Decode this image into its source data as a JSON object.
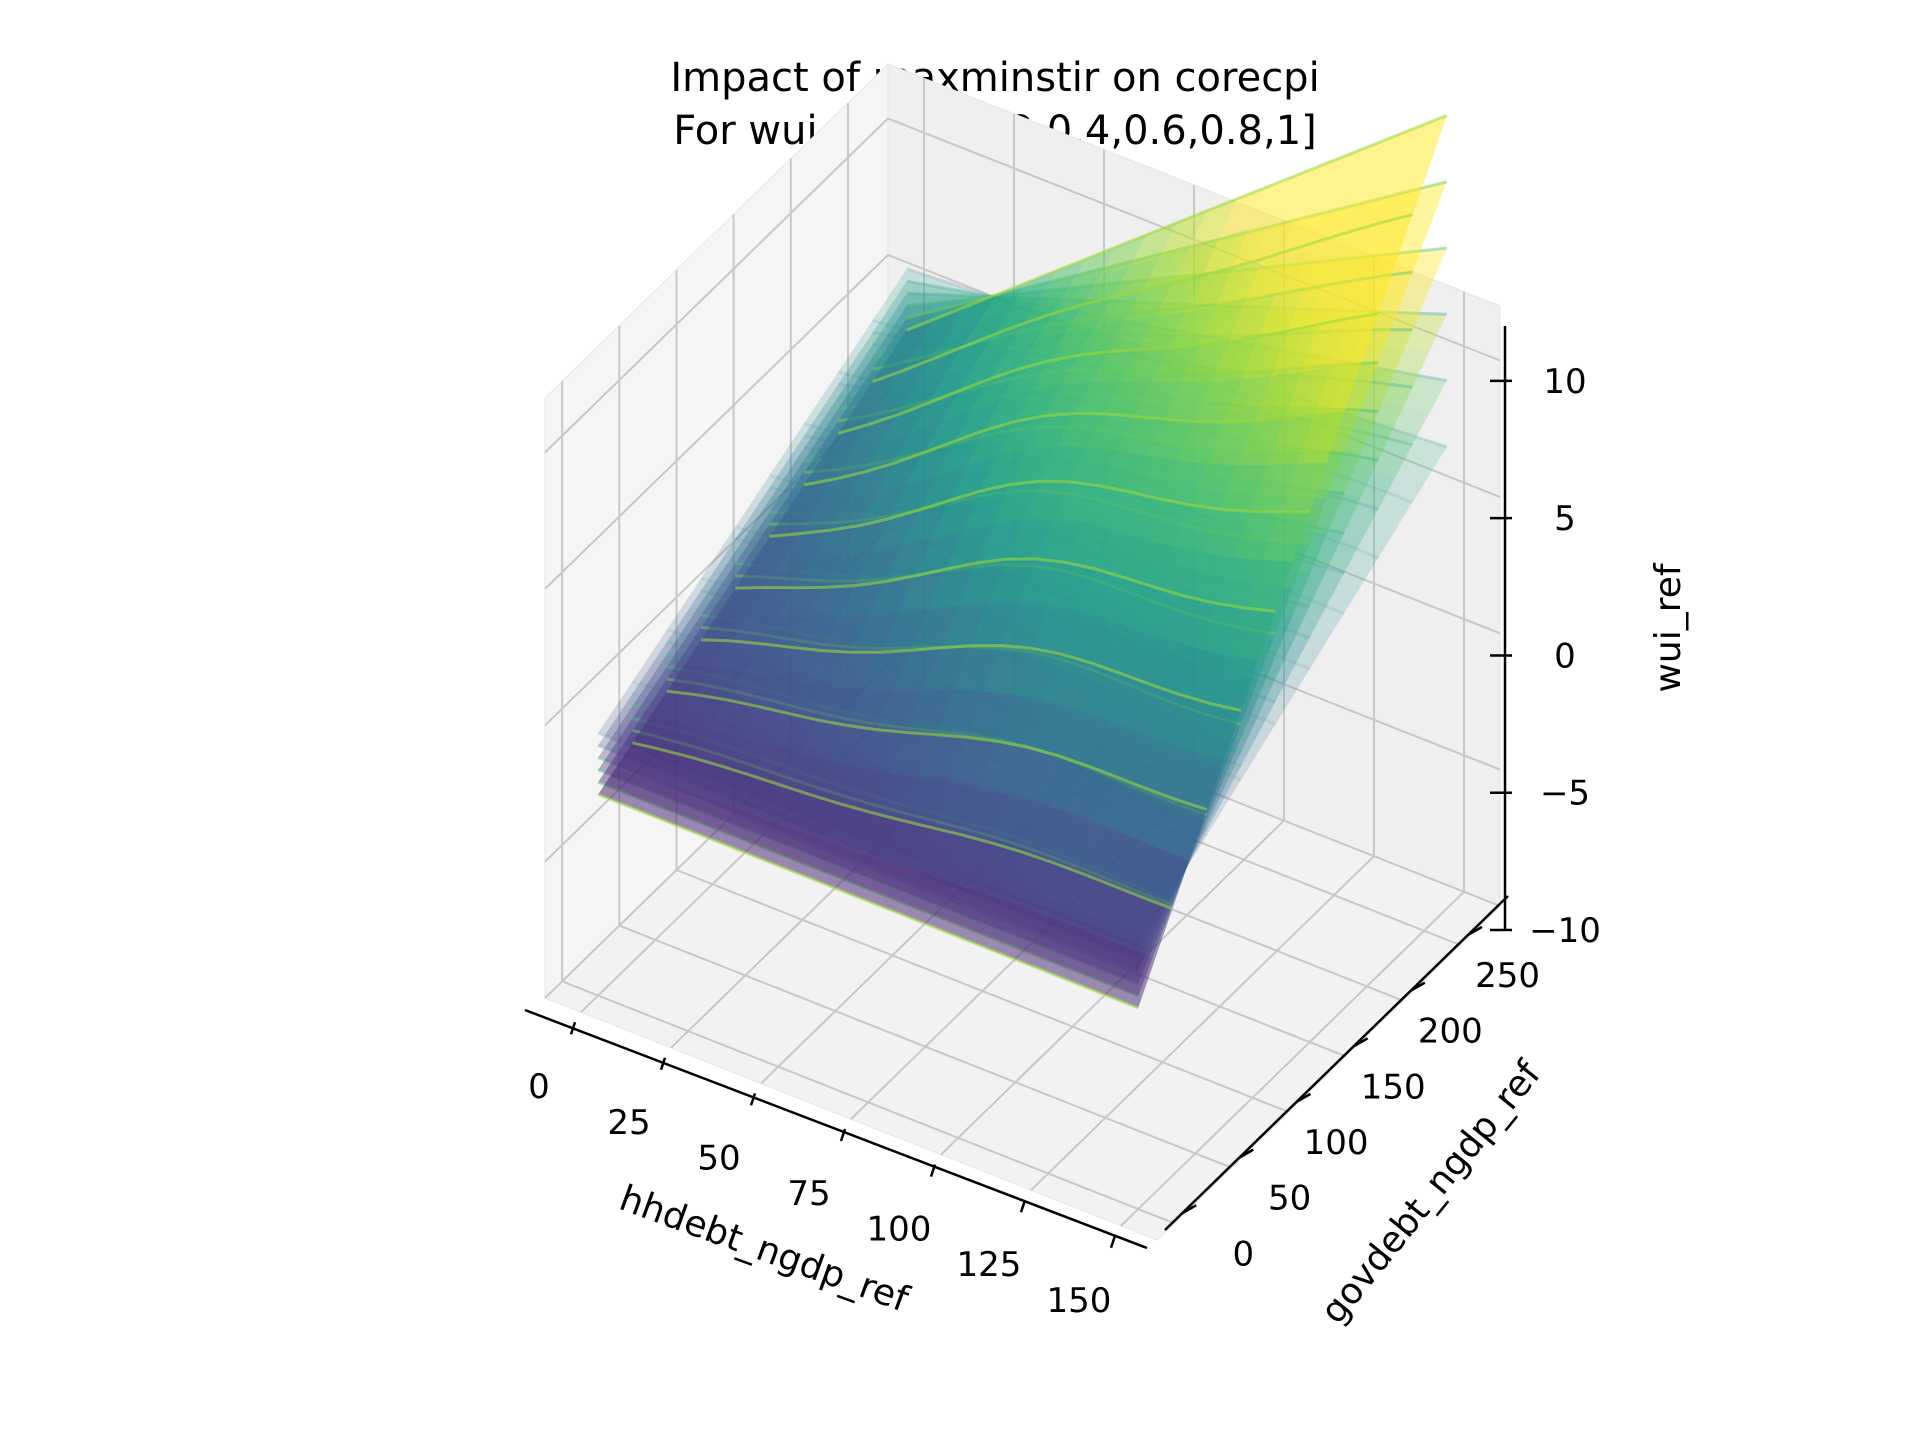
{
  "chart_data": {
    "type": "surface3d",
    "title": "Impact of maxminstir on corecpi",
    "subtitle": "For wui_ref: [0,0.2,0.4,0.6,0.8,1]",
    "xlabel": "hhdebt_ngdp_ref",
    "ylabel": "govdebt_ngdp_ref",
    "zlabel": "wui_ref",
    "xlim": [
      -10,
      160
    ],
    "ylim": [
      -15,
      285
    ],
    "zlim": [
      -10,
      12
    ],
    "x_ticks": [
      0,
      25,
      50,
      75,
      100,
      125,
      150
    ],
    "y_ticks": [
      0,
      50,
      100,
      150,
      200,
      250
    ],
    "z_ticks": [
      -10,
      -5,
      0,
      5,
      10
    ],
    "x_tick_labels": [
      "0",
      "25",
      "50",
      "75",
      "100",
      "125",
      "150"
    ],
    "y_tick_labels": [
      "0",
      "50",
      "100",
      "150",
      "200",
      "250"
    ],
    "z_tick_labels": [
      "−10",
      "−5",
      "0",
      "5",
      "10"
    ],
    "grid": true,
    "colormap": "viridis",
    "series_levels": [
      0,
      0.2,
      0.4,
      0.6,
      0.8,
      1
    ],
    "surface_corners": [
      {
        "x": 0,
        "y": 0,
        "z": -1.5
      },
      {
        "x": 150,
        "y": 0,
        "z": -1.5
      },
      {
        "x": 0,
        "y": 270,
        "z": 4.5
      },
      {
        "x": 150,
        "y": 270,
        "z": 13
      }
    ]
  }
}
